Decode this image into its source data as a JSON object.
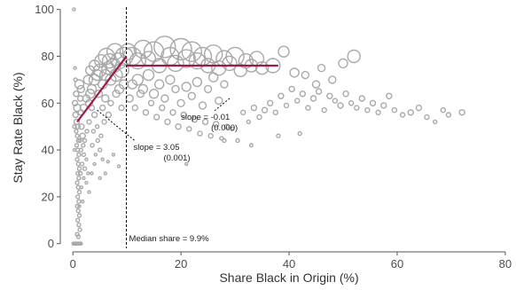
{
  "chart_data": {
    "type": "scatter",
    "title": "",
    "xlabel": "Share Black in Origin (%)",
    "ylabel": "Stay Rate Black (%)",
    "xlim": [
      -2,
      81
    ],
    "ylim": [
      -2,
      101
    ],
    "x_ticks": [
      0,
      20,
      40,
      60,
      80
    ],
    "y_ticks": [
      0,
      20,
      40,
      60,
      80,
      100
    ],
    "grid": false,
    "colors": {
      "points": "#a9a9a9",
      "fit": "#a0174e",
      "median_line": "#000000"
    },
    "median": {
      "x": 9.9,
      "label": "Median share = 9.9%"
    },
    "fit_lines": [
      {
        "name": "slope = 3.05",
        "x": [
          0.8,
          9.9
        ],
        "y": [
          52,
          80
        ]
      },
      {
        "name": "slope = -0.01",
        "x": [
          9.9,
          38
        ],
        "y": [
          76,
          76
        ]
      }
    ],
    "annotations": [
      {
        "text": "slope =  3.05",
        "text2": "(0.001)",
        "x": 11.2,
        "y": 40,
        "from": [
          4.5,
          57
        ]
      },
      {
        "text": "slope =  -0.01",
        "text2": "(0.000)",
        "x": 20,
        "y": 53,
        "from": [
          29,
          62
        ]
      }
    ],
    "points": [
      [
        0.2,
        100,
        1.5
      ],
      [
        0.4,
        75,
        1.5
      ],
      [
        0.5,
        70,
        2
      ],
      [
        0.6,
        64,
        3
      ],
      [
        0.8,
        58,
        4
      ],
      [
        0.5,
        55,
        3
      ],
      [
        0.7,
        52,
        3
      ],
      [
        0.9,
        50,
        2.5
      ],
      [
        0.6,
        48,
        2
      ],
      [
        0.8,
        46,
        2
      ],
      [
        1.0,
        44,
        2
      ],
      [
        0.7,
        42,
        2
      ],
      [
        0.9,
        40,
        2
      ],
      [
        1.1,
        38,
        2
      ],
      [
        0.8,
        36,
        2
      ],
      [
        1.0,
        34,
        2
      ],
      [
        1.2,
        32,
        2
      ],
      [
        0.9,
        30,
        2
      ],
      [
        1.1,
        28,
        2
      ],
      [
        0.8,
        26,
        2
      ],
      [
        1.0,
        24,
        2
      ],
      [
        1.2,
        22,
        2
      ],
      [
        0.9,
        20,
        2
      ],
      [
        1.1,
        18,
        2
      ],
      [
        0.8,
        16,
        2
      ],
      [
        1.0,
        14,
        2
      ],
      [
        1.2,
        12,
        2
      ],
      [
        0.9,
        10,
        2
      ],
      [
        1.1,
        8,
        2
      ],
      [
        1.3,
        6,
        2
      ],
      [
        0.8,
        4,
        2
      ],
      [
        1.0,
        3,
        2
      ],
      [
        0.4,
        60,
        3
      ],
      [
        0.3,
        50,
        2
      ],
      [
        0.3,
        40,
        1.5
      ],
      [
        1.4,
        62,
        3
      ],
      [
        1.5,
        56,
        3
      ],
      [
        1.6,
        50,
        3
      ],
      [
        1.8,
        46,
        3
      ],
      [
        1.3,
        44,
        2
      ],
      [
        1.9,
        42,
        2
      ],
      [
        1.5,
        40,
        2
      ],
      [
        2.0,
        38,
        2
      ],
      [
        1.7,
        34,
        2
      ],
      [
        2.2,
        32,
        2
      ],
      [
        1.4,
        30,
        2
      ],
      [
        2.0,
        28,
        1.5
      ],
      [
        2.5,
        36,
        1.5
      ],
      [
        2.8,
        30,
        1.5
      ],
      [
        2.5,
        26,
        1.5
      ],
      [
        3.0,
        22,
        1.5
      ],
      [
        1.6,
        24,
        1.5
      ],
      [
        1.8,
        18,
        1.5
      ],
      [
        1.2,
        16,
        1.5
      ],
      [
        2.2,
        44,
        2
      ],
      [
        2.6,
        48,
        2
      ],
      [
        3.0,
        52,
        2.5
      ],
      [
        2.0,
        58,
        4
      ],
      [
        2.5,
        62,
        4
      ],
      [
        3.2,
        64,
        5
      ],
      [
        1.5,
        66,
        4
      ],
      [
        2.8,
        70,
        5
      ],
      [
        1.2,
        68,
        5
      ],
      [
        3.5,
        58,
        3
      ],
      [
        4.0,
        55,
        3
      ],
      [
        4.5,
        50,
        2
      ],
      [
        3.8,
        48,
        2
      ],
      [
        4.6,
        44,
        2
      ],
      [
        5.0,
        40,
        2
      ],
      [
        4.2,
        38,
        1.5
      ],
      [
        5.5,
        36,
        1.5
      ],
      [
        6.5,
        35,
        1.5
      ],
      [
        7.5,
        38,
        1.5
      ],
      [
        8.5,
        33,
        1.5
      ],
      [
        6.0,
        30,
        1.5
      ],
      [
        3.5,
        30,
        1.5
      ],
      [
        5.0,
        28,
        1.5
      ],
      [
        4.0,
        34,
        1.5
      ],
      [
        3.6,
        42,
        2
      ],
      [
        5.2,
        46,
        2
      ],
      [
        3.0,
        60,
        4
      ],
      [
        3.5,
        66,
        5
      ],
      [
        4.0,
        70,
        6
      ],
      [
        4.5,
        72,
        6
      ],
      [
        5.0,
        74,
        7
      ],
      [
        5.5,
        68,
        5
      ],
      [
        6.0,
        72,
        6
      ],
      [
        6.5,
        75,
        7
      ],
      [
        7.0,
        70,
        6
      ],
      [
        7.5,
        76,
        8
      ],
      [
        8.0,
        72,
        7
      ],
      [
        8.5,
        78,
        9
      ],
      [
        9.0,
        74,
        8
      ],
      [
        9.5,
        80,
        10
      ],
      [
        6.0,
        62,
        4
      ],
      [
        7.0,
        60,
        3
      ],
      [
        8.0,
        64,
        4
      ],
      [
        9.0,
        58,
        3
      ],
      [
        5.5,
        58,
        3
      ],
      [
        4.8,
        64,
        4
      ],
      [
        6.2,
        80,
        9
      ],
      [
        7.8,
        82,
        9
      ],
      [
        6.8,
        78,
        8
      ],
      [
        5.2,
        78,
        7
      ],
      [
        4.0,
        76,
        6
      ],
      [
        3.2,
        74,
        5
      ],
      [
        8.6,
        66,
        5
      ],
      [
        9.4,
        68,
        5
      ],
      [
        5.8,
        52,
        2.5
      ],
      [
        6.6,
        55,
        3
      ],
      [
        10.2,
        82,
        9
      ],
      [
        11,
        80,
        10
      ],
      [
        12,
        78,
        9
      ],
      [
        13,
        83,
        10
      ],
      [
        14,
        79,
        8
      ],
      [
        15,
        82,
        11
      ],
      [
        16,
        76,
        8
      ],
      [
        17,
        84,
        12
      ],
      [
        18,
        80,
        10
      ],
      [
        19,
        77,
        9
      ],
      [
        20,
        83,
        12
      ],
      [
        21,
        79,
        10
      ],
      [
        22,
        82,
        11
      ],
      [
        23,
        78,
        9
      ],
      [
        24,
        80,
        10
      ],
      [
        25,
        76,
        8
      ],
      [
        26,
        81,
        10
      ],
      [
        27,
        75,
        8
      ],
      [
        28,
        79,
        9
      ],
      [
        29,
        77,
        8
      ],
      [
        30,
        80,
        10
      ],
      [
        31,
        74,
        7
      ],
      [
        32,
        78,
        8
      ],
      [
        33,
        76,
        7
      ],
      [
        34,
        79,
        8
      ],
      [
        35,
        75,
        7
      ],
      [
        37,
        76,
        8
      ],
      [
        39,
        82,
        6
      ],
      [
        41,
        73,
        5
      ],
      [
        43,
        72,
        4
      ],
      [
        46,
        75,
        4
      ],
      [
        48,
        70,
        4
      ],
      [
        50,
        77,
        5
      ],
      [
        52,
        80,
        7
      ],
      [
        45,
        68,
        4
      ],
      [
        11,
        68,
        5
      ],
      [
        12,
        70,
        6
      ],
      [
        13,
        66,
        5
      ],
      [
        14,
        72,
        6
      ],
      [
        15,
        64,
        5
      ],
      [
        16,
        68,
        5
      ],
      [
        17,
        62,
        4
      ],
      [
        18,
        70,
        5
      ],
      [
        19,
        66,
        4
      ],
      [
        20,
        60,
        4
      ],
      [
        21,
        67,
        5
      ],
      [
        22,
        63,
        4
      ],
      [
        23,
        69,
        5
      ],
      [
        24,
        59,
        4
      ],
      [
        25,
        66,
        4
      ],
      [
        26,
        71,
        5
      ],
      [
        27,
        61,
        4
      ],
      [
        28,
        68,
        4
      ],
      [
        10.5,
        62,
        4
      ],
      [
        11.5,
        58,
        3
      ],
      [
        12.5,
        64,
        4
      ],
      [
        13.5,
        56,
        3
      ],
      [
        14.5,
        60,
        3
      ],
      [
        15.5,
        54,
        3
      ],
      [
        16.5,
        58,
        3
      ],
      [
        17.5,
        52,
        3
      ],
      [
        18.5,
        56,
        3
      ],
      [
        19.5,
        50,
        3
      ],
      [
        20.5,
        55,
        3
      ],
      [
        21.5,
        49,
        2.5
      ],
      [
        22.5,
        53,
        3
      ],
      [
        23.5,
        47,
        2.5
      ],
      [
        24.5,
        52,
        3
      ],
      [
        25.5,
        46,
        2.5
      ],
      [
        26.5,
        51,
        3
      ],
      [
        27.5,
        45,
        2
      ],
      [
        28.5,
        50,
        2.5
      ],
      [
        29.5,
        49,
        2
      ],
      [
        30.5,
        44,
        2
      ],
      [
        31.5,
        56,
        2.5
      ],
      [
        32.5,
        52,
        2
      ],
      [
        33.5,
        58,
        3
      ],
      [
        34.5,
        54,
        2.5
      ],
      [
        35.5,
        57,
        3
      ],
      [
        36.5,
        60,
        3
      ],
      [
        37.5,
        56,
        2.5
      ],
      [
        38.5,
        63,
        3
      ],
      [
        39.5,
        59,
        2.5
      ],
      [
        40.5,
        66,
        3
      ],
      [
        41.5,
        61,
        2.5
      ],
      [
        42.5,
        64,
        3
      ],
      [
        43.5,
        58,
        2.5
      ],
      [
        44.5,
        62,
        3
      ],
      [
        45.5,
        65,
        3
      ],
      [
        46.5,
        57,
        2.5
      ],
      [
        47.5,
        63,
        3
      ],
      [
        48.5,
        61,
        2.5
      ],
      [
        49.5,
        59,
        3
      ],
      [
        50.5,
        64,
        3
      ],
      [
        51.5,
        60,
        2.5
      ],
      [
        52.5,
        58,
        2.5
      ],
      [
        53.5,
        62,
        3
      ],
      [
        54.5,
        57,
        2.5
      ],
      [
        55.5,
        60,
        3
      ],
      [
        56.5,
        56,
        2.5
      ],
      [
        57.5,
        59,
        3
      ],
      [
        58.5,
        63,
        3
      ],
      [
        59.5,
        57,
        2.5
      ],
      [
        61,
        55,
        2.5
      ],
      [
        62.5,
        56,
        3
      ],
      [
        64,
        58,
        3
      ],
      [
        65.5,
        54,
        2.5
      ],
      [
        67,
        52,
        2
      ],
      [
        68.5,
        57,
        2.5
      ],
      [
        69.5,
        55,
        2.5
      ],
      [
        72,
        56,
        3
      ],
      [
        42,
        47,
        2
      ],
      [
        38,
        46,
        2
      ],
      [
        33,
        42,
        1.8
      ],
      [
        28,
        44,
        2
      ],
      [
        21,
        34,
        1.5
      ]
    ]
  }
}
